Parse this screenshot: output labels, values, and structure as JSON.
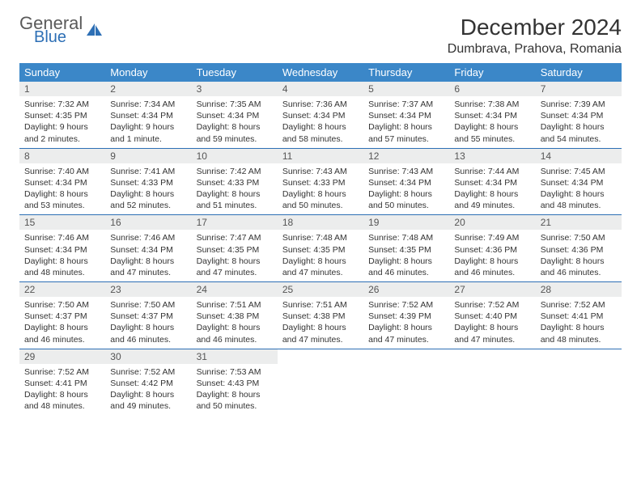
{
  "logo": {
    "general": "General",
    "blue": "Blue"
  },
  "title": "December 2024",
  "location": "Dumbrava, Prahova, Romania",
  "colors": {
    "header_bg": "#3b87c8",
    "header_fg": "#ffffff",
    "daynum_bg": "#eceded",
    "rule": "#2d6fb5",
    "logo_blue": "#2d6fb5",
    "logo_gray": "#5a5a5a"
  },
  "weekdays": [
    "Sunday",
    "Monday",
    "Tuesday",
    "Wednesday",
    "Thursday",
    "Friday",
    "Saturday"
  ],
  "weeks": [
    [
      {
        "n": "1",
        "sr": "Sunrise: 7:32 AM",
        "ss": "Sunset: 4:35 PM",
        "dl": "Daylight: 9 hours and 2 minutes."
      },
      {
        "n": "2",
        "sr": "Sunrise: 7:34 AM",
        "ss": "Sunset: 4:34 PM",
        "dl": "Daylight: 9 hours and 1 minute."
      },
      {
        "n": "3",
        "sr": "Sunrise: 7:35 AM",
        "ss": "Sunset: 4:34 PM",
        "dl": "Daylight: 8 hours and 59 minutes."
      },
      {
        "n": "4",
        "sr": "Sunrise: 7:36 AM",
        "ss": "Sunset: 4:34 PM",
        "dl": "Daylight: 8 hours and 58 minutes."
      },
      {
        "n": "5",
        "sr": "Sunrise: 7:37 AM",
        "ss": "Sunset: 4:34 PM",
        "dl": "Daylight: 8 hours and 57 minutes."
      },
      {
        "n": "6",
        "sr": "Sunrise: 7:38 AM",
        "ss": "Sunset: 4:34 PM",
        "dl": "Daylight: 8 hours and 55 minutes."
      },
      {
        "n": "7",
        "sr": "Sunrise: 7:39 AM",
        "ss": "Sunset: 4:34 PM",
        "dl": "Daylight: 8 hours and 54 minutes."
      }
    ],
    [
      {
        "n": "8",
        "sr": "Sunrise: 7:40 AM",
        "ss": "Sunset: 4:34 PM",
        "dl": "Daylight: 8 hours and 53 minutes."
      },
      {
        "n": "9",
        "sr": "Sunrise: 7:41 AM",
        "ss": "Sunset: 4:33 PM",
        "dl": "Daylight: 8 hours and 52 minutes."
      },
      {
        "n": "10",
        "sr": "Sunrise: 7:42 AM",
        "ss": "Sunset: 4:33 PM",
        "dl": "Daylight: 8 hours and 51 minutes."
      },
      {
        "n": "11",
        "sr": "Sunrise: 7:43 AM",
        "ss": "Sunset: 4:33 PM",
        "dl": "Daylight: 8 hours and 50 minutes."
      },
      {
        "n": "12",
        "sr": "Sunrise: 7:43 AM",
        "ss": "Sunset: 4:34 PM",
        "dl": "Daylight: 8 hours and 50 minutes."
      },
      {
        "n": "13",
        "sr": "Sunrise: 7:44 AM",
        "ss": "Sunset: 4:34 PM",
        "dl": "Daylight: 8 hours and 49 minutes."
      },
      {
        "n": "14",
        "sr": "Sunrise: 7:45 AM",
        "ss": "Sunset: 4:34 PM",
        "dl": "Daylight: 8 hours and 48 minutes."
      }
    ],
    [
      {
        "n": "15",
        "sr": "Sunrise: 7:46 AM",
        "ss": "Sunset: 4:34 PM",
        "dl": "Daylight: 8 hours and 48 minutes."
      },
      {
        "n": "16",
        "sr": "Sunrise: 7:46 AM",
        "ss": "Sunset: 4:34 PM",
        "dl": "Daylight: 8 hours and 47 minutes."
      },
      {
        "n": "17",
        "sr": "Sunrise: 7:47 AM",
        "ss": "Sunset: 4:35 PM",
        "dl": "Daylight: 8 hours and 47 minutes."
      },
      {
        "n": "18",
        "sr": "Sunrise: 7:48 AM",
        "ss": "Sunset: 4:35 PM",
        "dl": "Daylight: 8 hours and 47 minutes."
      },
      {
        "n": "19",
        "sr": "Sunrise: 7:48 AM",
        "ss": "Sunset: 4:35 PM",
        "dl": "Daylight: 8 hours and 46 minutes."
      },
      {
        "n": "20",
        "sr": "Sunrise: 7:49 AM",
        "ss": "Sunset: 4:36 PM",
        "dl": "Daylight: 8 hours and 46 minutes."
      },
      {
        "n": "21",
        "sr": "Sunrise: 7:50 AM",
        "ss": "Sunset: 4:36 PM",
        "dl": "Daylight: 8 hours and 46 minutes."
      }
    ],
    [
      {
        "n": "22",
        "sr": "Sunrise: 7:50 AM",
        "ss": "Sunset: 4:37 PM",
        "dl": "Daylight: 8 hours and 46 minutes."
      },
      {
        "n": "23",
        "sr": "Sunrise: 7:50 AM",
        "ss": "Sunset: 4:37 PM",
        "dl": "Daylight: 8 hours and 46 minutes."
      },
      {
        "n": "24",
        "sr": "Sunrise: 7:51 AM",
        "ss": "Sunset: 4:38 PM",
        "dl": "Daylight: 8 hours and 46 minutes."
      },
      {
        "n": "25",
        "sr": "Sunrise: 7:51 AM",
        "ss": "Sunset: 4:38 PM",
        "dl": "Daylight: 8 hours and 47 minutes."
      },
      {
        "n": "26",
        "sr": "Sunrise: 7:52 AM",
        "ss": "Sunset: 4:39 PM",
        "dl": "Daylight: 8 hours and 47 minutes."
      },
      {
        "n": "27",
        "sr": "Sunrise: 7:52 AM",
        "ss": "Sunset: 4:40 PM",
        "dl": "Daylight: 8 hours and 47 minutes."
      },
      {
        "n": "28",
        "sr": "Sunrise: 7:52 AM",
        "ss": "Sunset: 4:41 PM",
        "dl": "Daylight: 8 hours and 48 minutes."
      }
    ],
    [
      {
        "n": "29",
        "sr": "Sunrise: 7:52 AM",
        "ss": "Sunset: 4:41 PM",
        "dl": "Daylight: 8 hours and 48 minutes."
      },
      {
        "n": "30",
        "sr": "Sunrise: 7:52 AM",
        "ss": "Sunset: 4:42 PM",
        "dl": "Daylight: 8 hours and 49 minutes."
      },
      {
        "n": "31",
        "sr": "Sunrise: 7:53 AM",
        "ss": "Sunset: 4:43 PM",
        "dl": "Daylight: 8 hours and 50 minutes."
      },
      null,
      null,
      null,
      null
    ]
  ]
}
